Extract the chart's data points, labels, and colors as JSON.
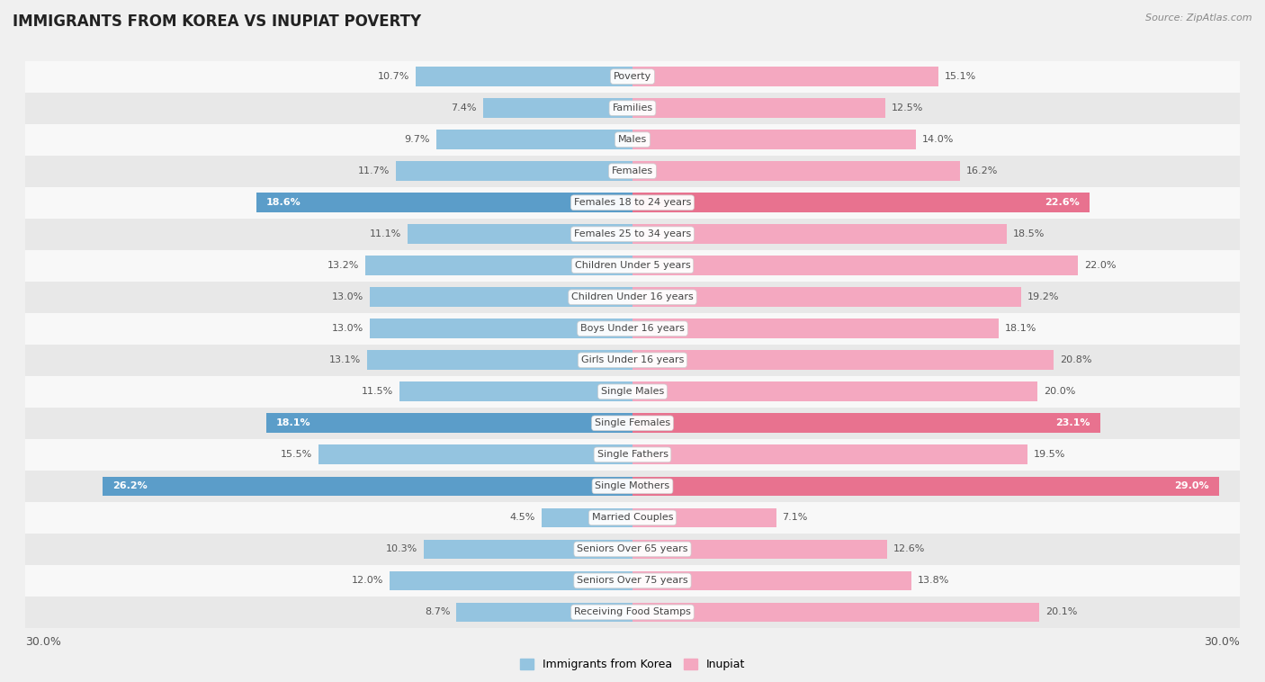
{
  "title": "IMMIGRANTS FROM KOREA VS INUPIAT POVERTY",
  "source": "Source: ZipAtlas.com",
  "categories": [
    "Poverty",
    "Families",
    "Males",
    "Females",
    "Females 18 to 24 years",
    "Females 25 to 34 years",
    "Children Under 5 years",
    "Children Under 16 years",
    "Boys Under 16 years",
    "Girls Under 16 years",
    "Single Males",
    "Single Females",
    "Single Fathers",
    "Single Mothers",
    "Married Couples",
    "Seniors Over 65 years",
    "Seniors Over 75 years",
    "Receiving Food Stamps"
  ],
  "korea_values": [
    10.7,
    7.4,
    9.7,
    11.7,
    18.6,
    11.1,
    13.2,
    13.0,
    13.0,
    13.1,
    11.5,
    18.1,
    15.5,
    26.2,
    4.5,
    10.3,
    12.0,
    8.7
  ],
  "inupiat_values": [
    15.1,
    12.5,
    14.0,
    16.2,
    22.6,
    18.5,
    22.0,
    19.2,
    18.1,
    20.8,
    20.0,
    23.1,
    19.5,
    29.0,
    7.1,
    12.6,
    13.8,
    20.1
  ],
  "korea_color": "#94c4e0",
  "inupiat_color": "#f4a8c0",
  "korea_highlight_color": "#5b9dc9",
  "inupiat_highlight_color": "#e8728f",
  "highlight_rows": [
    4,
    11,
    13
  ],
  "bar_height": 0.62,
  "bg_color": "#f0f0f0",
  "row_color_light": "#f8f8f8",
  "row_color_dark": "#e8e8e8",
  "legend_korea": "Immigrants from Korea",
  "legend_inupiat": "Inupiat",
  "axis_label_left": "30.0%",
  "axis_label_right": "30.0%",
  "max_val": 30.0
}
